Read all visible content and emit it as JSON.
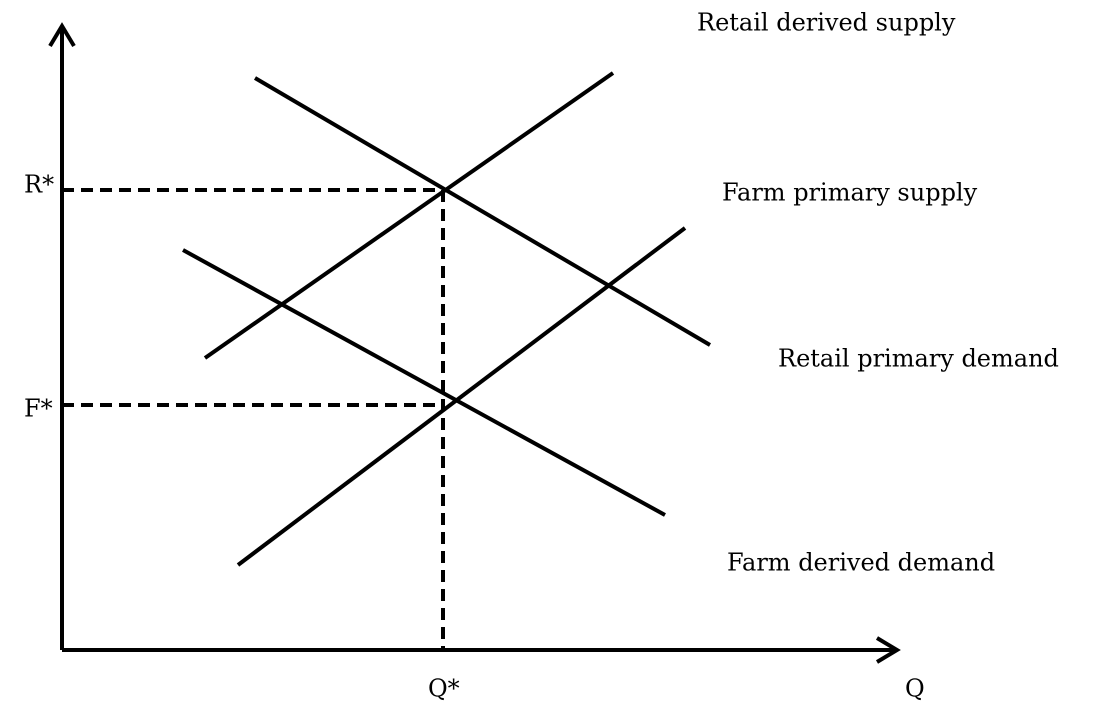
{
  "axes": {
    "x_label": "Q",
    "equilibrium_quantity": "Q*",
    "retail_price": "R*",
    "farm_price": "F*"
  },
  "curves": [
    {
      "label": "Retail derived supply"
    },
    {
      "label": "Farm primary supply"
    },
    {
      "label": "Retail primary demand"
    },
    {
      "label": "Farm derived demand"
    }
  ]
}
